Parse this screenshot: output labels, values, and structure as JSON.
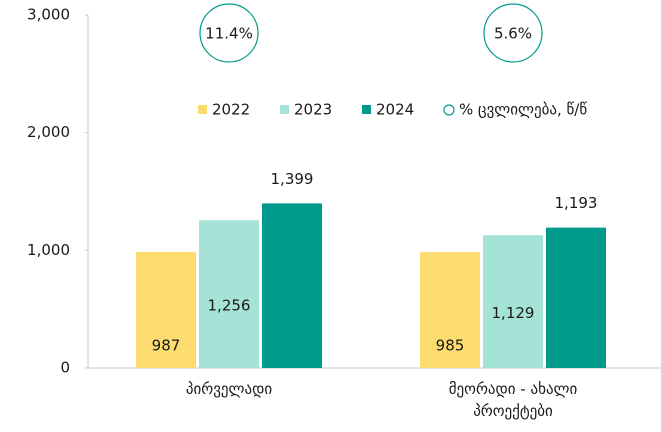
{
  "chart_data": {
    "type": "bar",
    "categories": [
      "პირველადი",
      "მეორადი - ახალი პროექტები"
    ],
    "series": [
      {
        "name": "2022",
        "color": "#fcdc6f",
        "values": [
          987,
          985
        ],
        "value_labels": [
          "987",
          "985"
        ]
      },
      {
        "name": "2023",
        "color": "#a6e3d7",
        "values": [
          1256,
          1129
        ],
        "value_labels": [
          "1,256",
          "1,129"
        ]
      },
      {
        "name": "2024",
        "color": "#009a8c",
        "values": [
          1399,
          1193
        ],
        "value_labels": [
          "1,399",
          "1,193"
        ]
      }
    ],
    "change": {
      "name": "% ცვლილება, წ/წ",
      "color": "#009a8c",
      "values": [
        11.4,
        5.6
      ],
      "value_labels": [
        "11.4%",
        "5.6%"
      ]
    },
    "ylim": [
      0,
      3000
    ],
    "yticks": [
      0,
      {
        "value": 1000,
        "label": "1,000"
      },
      {
        "value": 2000,
        "label": "2,000"
      },
      {
        "value": 3000,
        "label": "3,000"
      }
    ],
    "grid": false
  }
}
